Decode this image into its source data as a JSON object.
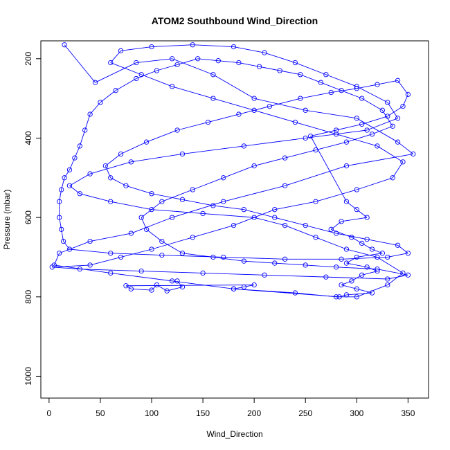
{
  "chart_data": {
    "type": "scatter",
    "title": "ATOM2 Southbound Wind_Direction",
    "xlabel": "Wind_Direction",
    "ylabel": "Pressure (mbar)",
    "xlim": [
      -8,
      370
    ],
    "ylim": [
      1055,
      155
    ],
    "y_reversed": true,
    "x_ticks": [
      0,
      50,
      100,
      150,
      200,
      250,
      300,
      350
    ],
    "y_ticks": [
      200,
      400,
      600,
      800,
      1000
    ],
    "grid": false,
    "marker": "open-circle",
    "connected": true,
    "series_color": "#0000FF",
    "series": [
      {
        "points": [
          [
            15,
            165
          ],
          [
            45,
            260
          ],
          [
            85,
            210
          ],
          [
            120,
            200
          ],
          [
            160,
            240
          ],
          [
            200,
            300
          ],
          [
            250,
            330
          ],
          [
            300,
            350
          ],
          [
            340,
            410
          ],
          [
            355,
            440
          ],
          [
            290,
            470
          ],
          [
            230,
            520
          ],
          [
            170,
            560
          ],
          [
            120,
            600
          ],
          [
            80,
            640
          ],
          [
            40,
            660
          ],
          [
            10,
            690
          ],
          [
            5,
            720
          ],
          [
            60,
            740
          ],
          [
            120,
            760
          ],
          [
            180,
            780
          ],
          [
            240,
            790
          ],
          [
            280,
            800
          ],
          [
            300,
            800
          ],
          [
            330,
            770
          ],
          [
            345,
            740
          ],
          [
            320,
            700
          ],
          [
            290,
            680
          ],
          [
            260,
            650
          ],
          [
            230,
            620
          ],
          [
            200,
            600
          ],
          [
            150,
            590
          ],
          [
            100,
            580
          ],
          [
            60,
            560
          ],
          [
            30,
            540
          ],
          [
            20,
            520
          ],
          [
            40,
            490
          ],
          [
            80,
            460
          ],
          [
            130,
            440
          ],
          [
            190,
            420
          ],
          [
            250,
            400
          ],
          [
            310,
            380
          ],
          [
            340,
            350
          ],
          [
            330,
            310
          ],
          [
            300,
            270
          ],
          [
            270,
            240
          ],
          [
            240,
            210
          ],
          [
            210,
            185
          ],
          [
            180,
            170
          ],
          [
            140,
            165
          ],
          [
            100,
            170
          ],
          [
            70,
            180
          ],
          [
            60,
            210
          ],
          [
            90,
            240
          ],
          [
            120,
            270
          ],
          [
            160,
            300
          ],
          [
            200,
            330
          ],
          [
            240,
            360
          ],
          [
            280,
            390
          ],
          [
            320,
            420
          ],
          [
            345,
            460
          ],
          [
            335,
            500
          ],
          [
            300,
            530
          ],
          [
            260,
            560
          ],
          [
            220,
            580
          ],
          [
            180,
            620
          ],
          [
            140,
            650
          ],
          [
            100,
            680
          ],
          [
            70,
            700
          ],
          [
            40,
            720
          ],
          [
            3,
            725
          ],
          [
            30,
            730
          ],
          [
            90,
            735
          ],
          [
            150,
            740
          ],
          [
            210,
            745
          ],
          [
            270,
            750
          ],
          [
            330,
            755
          ],
          [
            350,
            745
          ],
          [
            320,
            730
          ],
          [
            280,
            725
          ],
          [
            250,
            720
          ],
          [
            220,
            715
          ],
          [
            190,
            710
          ],
          [
            160,
            700
          ],
          [
            130,
            690
          ],
          [
            110,
            660
          ],
          [
            95,
            630
          ],
          [
            90,
            600
          ],
          [
            110,
            560
          ],
          [
            140,
            530
          ],
          [
            170,
            500
          ],
          [
            200,
            470
          ],
          [
            230,
            450
          ],
          [
            260,
            430
          ],
          [
            290,
            410
          ],
          [
            315,
            390
          ],
          [
            335,
            370
          ],
          [
            325,
            330
          ],
          [
            305,
            300
          ],
          [
            285,
            280
          ],
          [
            265,
            260
          ],
          [
            245,
            240
          ],
          [
            225,
            230
          ],
          [
            205,
            220
          ],
          [
            185,
            210
          ],
          [
            165,
            205
          ],
          [
            145,
            200
          ],
          [
            125,
            215
          ],
          [
            105,
            230
          ],
          [
            85,
            250
          ],
          [
            65,
            280
          ],
          [
            50,
            310
          ],
          [
            40,
            340
          ],
          [
            35,
            380
          ],
          [
            30,
            420
          ],
          [
            25,
            450
          ],
          [
            20,
            480
          ],
          [
            15,
            500
          ],
          [
            12,
            530
          ],
          [
            10,
            560
          ],
          [
            10,
            600
          ],
          [
            12,
            630
          ],
          [
            14,
            660
          ],
          [
            20,
            680
          ],
          [
            60,
            690
          ],
          [
            110,
            695
          ],
          [
            170,
            700
          ],
          [
            230,
            705
          ],
          [
            285,
            705
          ],
          [
            330,
            700
          ],
          [
            350,
            690
          ],
          [
            340,
            670
          ],
          [
            310,
            655
          ],
          [
            280,
            640
          ],
          [
            250,
            620
          ],
          [
            220,
            600
          ],
          [
            190,
            580
          ],
          [
            160,
            570
          ],
          [
            130,
            555
          ],
          [
            100,
            540
          ],
          [
            75,
            520
          ],
          [
            60,
            500
          ],
          [
            55,
            470
          ],
          [
            70,
            440
          ],
          [
            95,
            410
          ],
          [
            125,
            380
          ],
          [
            155,
            360
          ],
          [
            185,
            340
          ],
          [
            215,
            320
          ],
          [
            245,
            300
          ],
          [
            275,
            285
          ],
          [
            300,
            275
          ],
          [
            320,
            265
          ],
          [
            340,
            255
          ],
          [
            350,
            290
          ],
          [
            345,
            320
          ],
          [
            330,
            345
          ],
          [
            305,
            365
          ],
          [
            280,
            380
          ],
          [
            255,
            395
          ],
          [
            290,
            560
          ],
          [
            300,
            580
          ],
          [
            310,
            600
          ],
          [
            285,
            610
          ],
          [
            275,
            630
          ],
          [
            295,
            650
          ],
          [
            305,
            665
          ],
          [
            315,
            680
          ],
          [
            325,
            690
          ],
          [
            300,
            700
          ],
          [
            290,
            715
          ],
          [
            310,
            725
          ],
          [
            320,
            735
          ],
          [
            305,
            745
          ],
          [
            295,
            760
          ],
          [
            285,
            770
          ],
          [
            300,
            780
          ],
          [
            315,
            790
          ],
          [
            290,
            795
          ],
          [
            283,
            800
          ],
          [
            180,
            780
          ],
          [
            190,
            775
          ],
          [
            200,
            770
          ],
          [
            75,
            772
          ],
          [
            80,
            780
          ],
          [
            100,
            783
          ],
          [
            105,
            770
          ],
          [
            115,
            785
          ],
          [
            130,
            775
          ],
          [
            125,
            760
          ]
        ]
      }
    ]
  }
}
